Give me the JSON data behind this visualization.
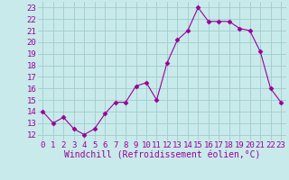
{
  "x": [
    0,
    1,
    2,
    3,
    4,
    5,
    6,
    7,
    8,
    9,
    10,
    11,
    12,
    13,
    14,
    15,
    16,
    17,
    18,
    19,
    20,
    21,
    22,
    23
  ],
  "y": [
    14.0,
    13.0,
    13.5,
    12.5,
    12.0,
    12.5,
    13.8,
    14.8,
    14.8,
    16.2,
    16.5,
    15.0,
    18.2,
    20.2,
    21.0,
    23.0,
    21.8,
    21.8,
    21.8,
    21.2,
    21.0,
    19.2,
    16.0,
    14.8
  ],
  "line_color": "#990099",
  "marker": "D",
  "marker_size": 2.5,
  "background_color": "#c8eaea",
  "grid_color": "#a0cccc",
  "xlabel": "Windchill (Refroidissement éolien,°C)",
  "xlabel_color": "#990099",
  "xlabel_fontsize": 7,
  "ylabel_ticks": [
    12,
    13,
    14,
    15,
    16,
    17,
    18,
    19,
    20,
    21,
    22,
    23
  ],
  "xlim": [
    -0.5,
    23.5
  ],
  "ylim": [
    11.5,
    23.5
  ],
  "tick_color": "#990099",
  "tick_fontsize": 6.5,
  "xtick_labels": [
    "0",
    "1",
    "2",
    "3",
    "4",
    "5",
    "6",
    "7",
    "8",
    "9",
    "10",
    "11",
    "12",
    "13",
    "14",
    "15",
    "16",
    "17",
    "18",
    "19",
    "20",
    "21",
    "22",
    "23"
  ]
}
